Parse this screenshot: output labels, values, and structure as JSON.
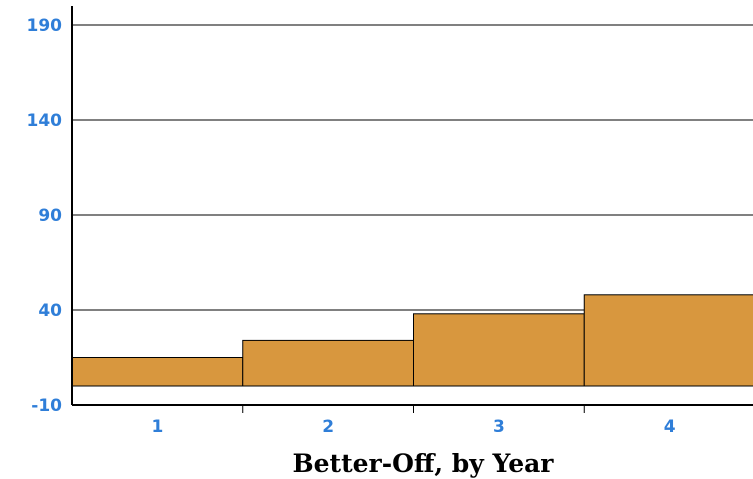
{
  "chart_data": {
    "type": "bar",
    "title": "",
    "xlabel": "Better-Off, by Year",
    "ylabel": "",
    "categories": [
      "1",
      "2",
      "3",
      "4"
    ],
    "values": [
      15,
      24,
      38,
      48
    ],
    "ylim": [
      -10,
      190
    ],
    "yticks": [
      "-10",
      "40",
      "90",
      "140",
      "190"
    ],
    "grid": true,
    "legend": "none"
  },
  "colors": {
    "bar_fill": "#d8973e",
    "bar_stroke": "#000000",
    "tick_label": "#2f7ed8",
    "grid": "#000000",
    "background": "#ffffff"
  }
}
